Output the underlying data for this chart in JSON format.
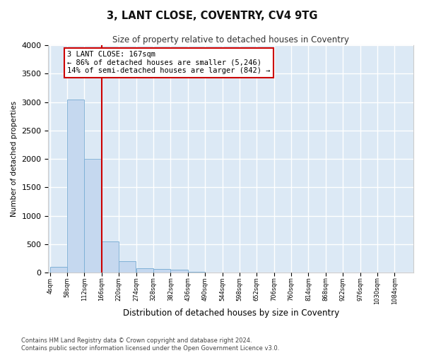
{
  "title": "3, LANT CLOSE, COVENTRY, CV4 9TG",
  "subtitle": "Size of property relative to detached houses in Coventry",
  "xlabel": "Distribution of detached houses by size in Coventry",
  "ylabel": "Number of detached properties",
  "bar_color": "#c5d8ef",
  "bar_edge_color": "#7aadd4",
  "background_color": "#dce9f5",
  "grid_color": "#ffffff",
  "fig_background": "#ffffff",
  "bins": [
    4,
    58,
    112,
    166,
    220,
    274,
    328,
    382,
    436,
    490,
    544,
    598,
    652,
    706,
    760,
    814,
    868,
    922,
    976,
    1030,
    1084
  ],
  "bar_heights": [
    100,
    3050,
    2000,
    550,
    200,
    80,
    60,
    50,
    10,
    0,
    0,
    0,
    0,
    0,
    0,
    0,
    0,
    0,
    0,
    0
  ],
  "property_size": 167,
  "property_line_color": "#cc0000",
  "annotation_text": "3 LANT CLOSE: 167sqm\n← 86% of detached houses are smaller (5,246)\n14% of semi-detached houses are larger (842) →",
  "annotation_box_color": "#ffffff",
  "annotation_border_color": "#cc0000",
  "ylim": [
    0,
    4000
  ],
  "yticks": [
    0,
    500,
    1000,
    1500,
    2000,
    2500,
    3000,
    3500,
    4000
  ],
  "footer_line1": "Contains HM Land Registry data © Crown copyright and database right 2024.",
  "footer_line2": "Contains public sector information licensed under the Open Government Licence v3.0."
}
